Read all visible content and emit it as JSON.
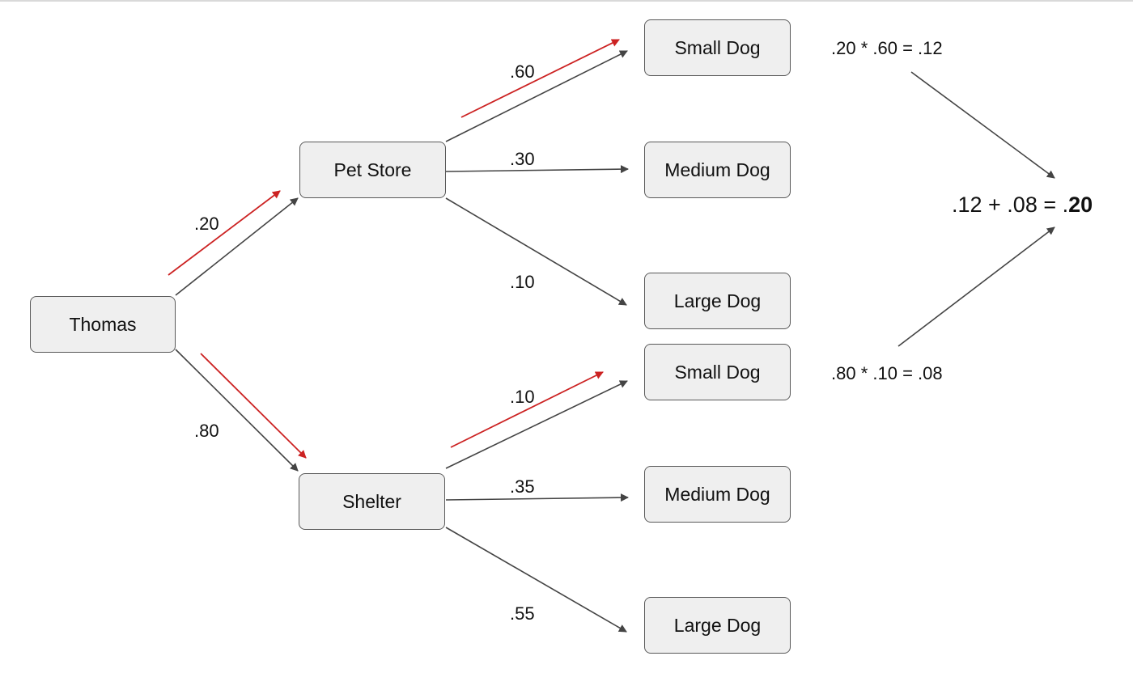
{
  "nodes": {
    "root": "Thomas",
    "pet_store": "Pet Store",
    "shelter": "Shelter",
    "pet_store_children": [
      "Small Dog",
      "Medium Dog",
      "Large Dog"
    ],
    "shelter_children": [
      "Small Dog",
      "Medium Dog",
      "Large Dog"
    ]
  },
  "edge_labels": {
    "thomas_to_pet_store": ".20",
    "thomas_to_shelter": ".80",
    "pet_store_small": ".60",
    "pet_store_medium": ".30",
    "pet_store_large": ".10",
    "shelter_small": ".10",
    "shelter_medium": ".35",
    "shelter_large": ".55"
  },
  "calculations": {
    "pet_store_path": ".20 * .60 = .12",
    "shelter_path": ".80 * .10 = .08",
    "sum_expression": ".12 + .08 = .",
    "sum_result": "20"
  },
  "colors": {
    "edge": "#444444",
    "highlight": "#cc2222",
    "node_fill": "#efefef",
    "node_border": "#595959"
  }
}
